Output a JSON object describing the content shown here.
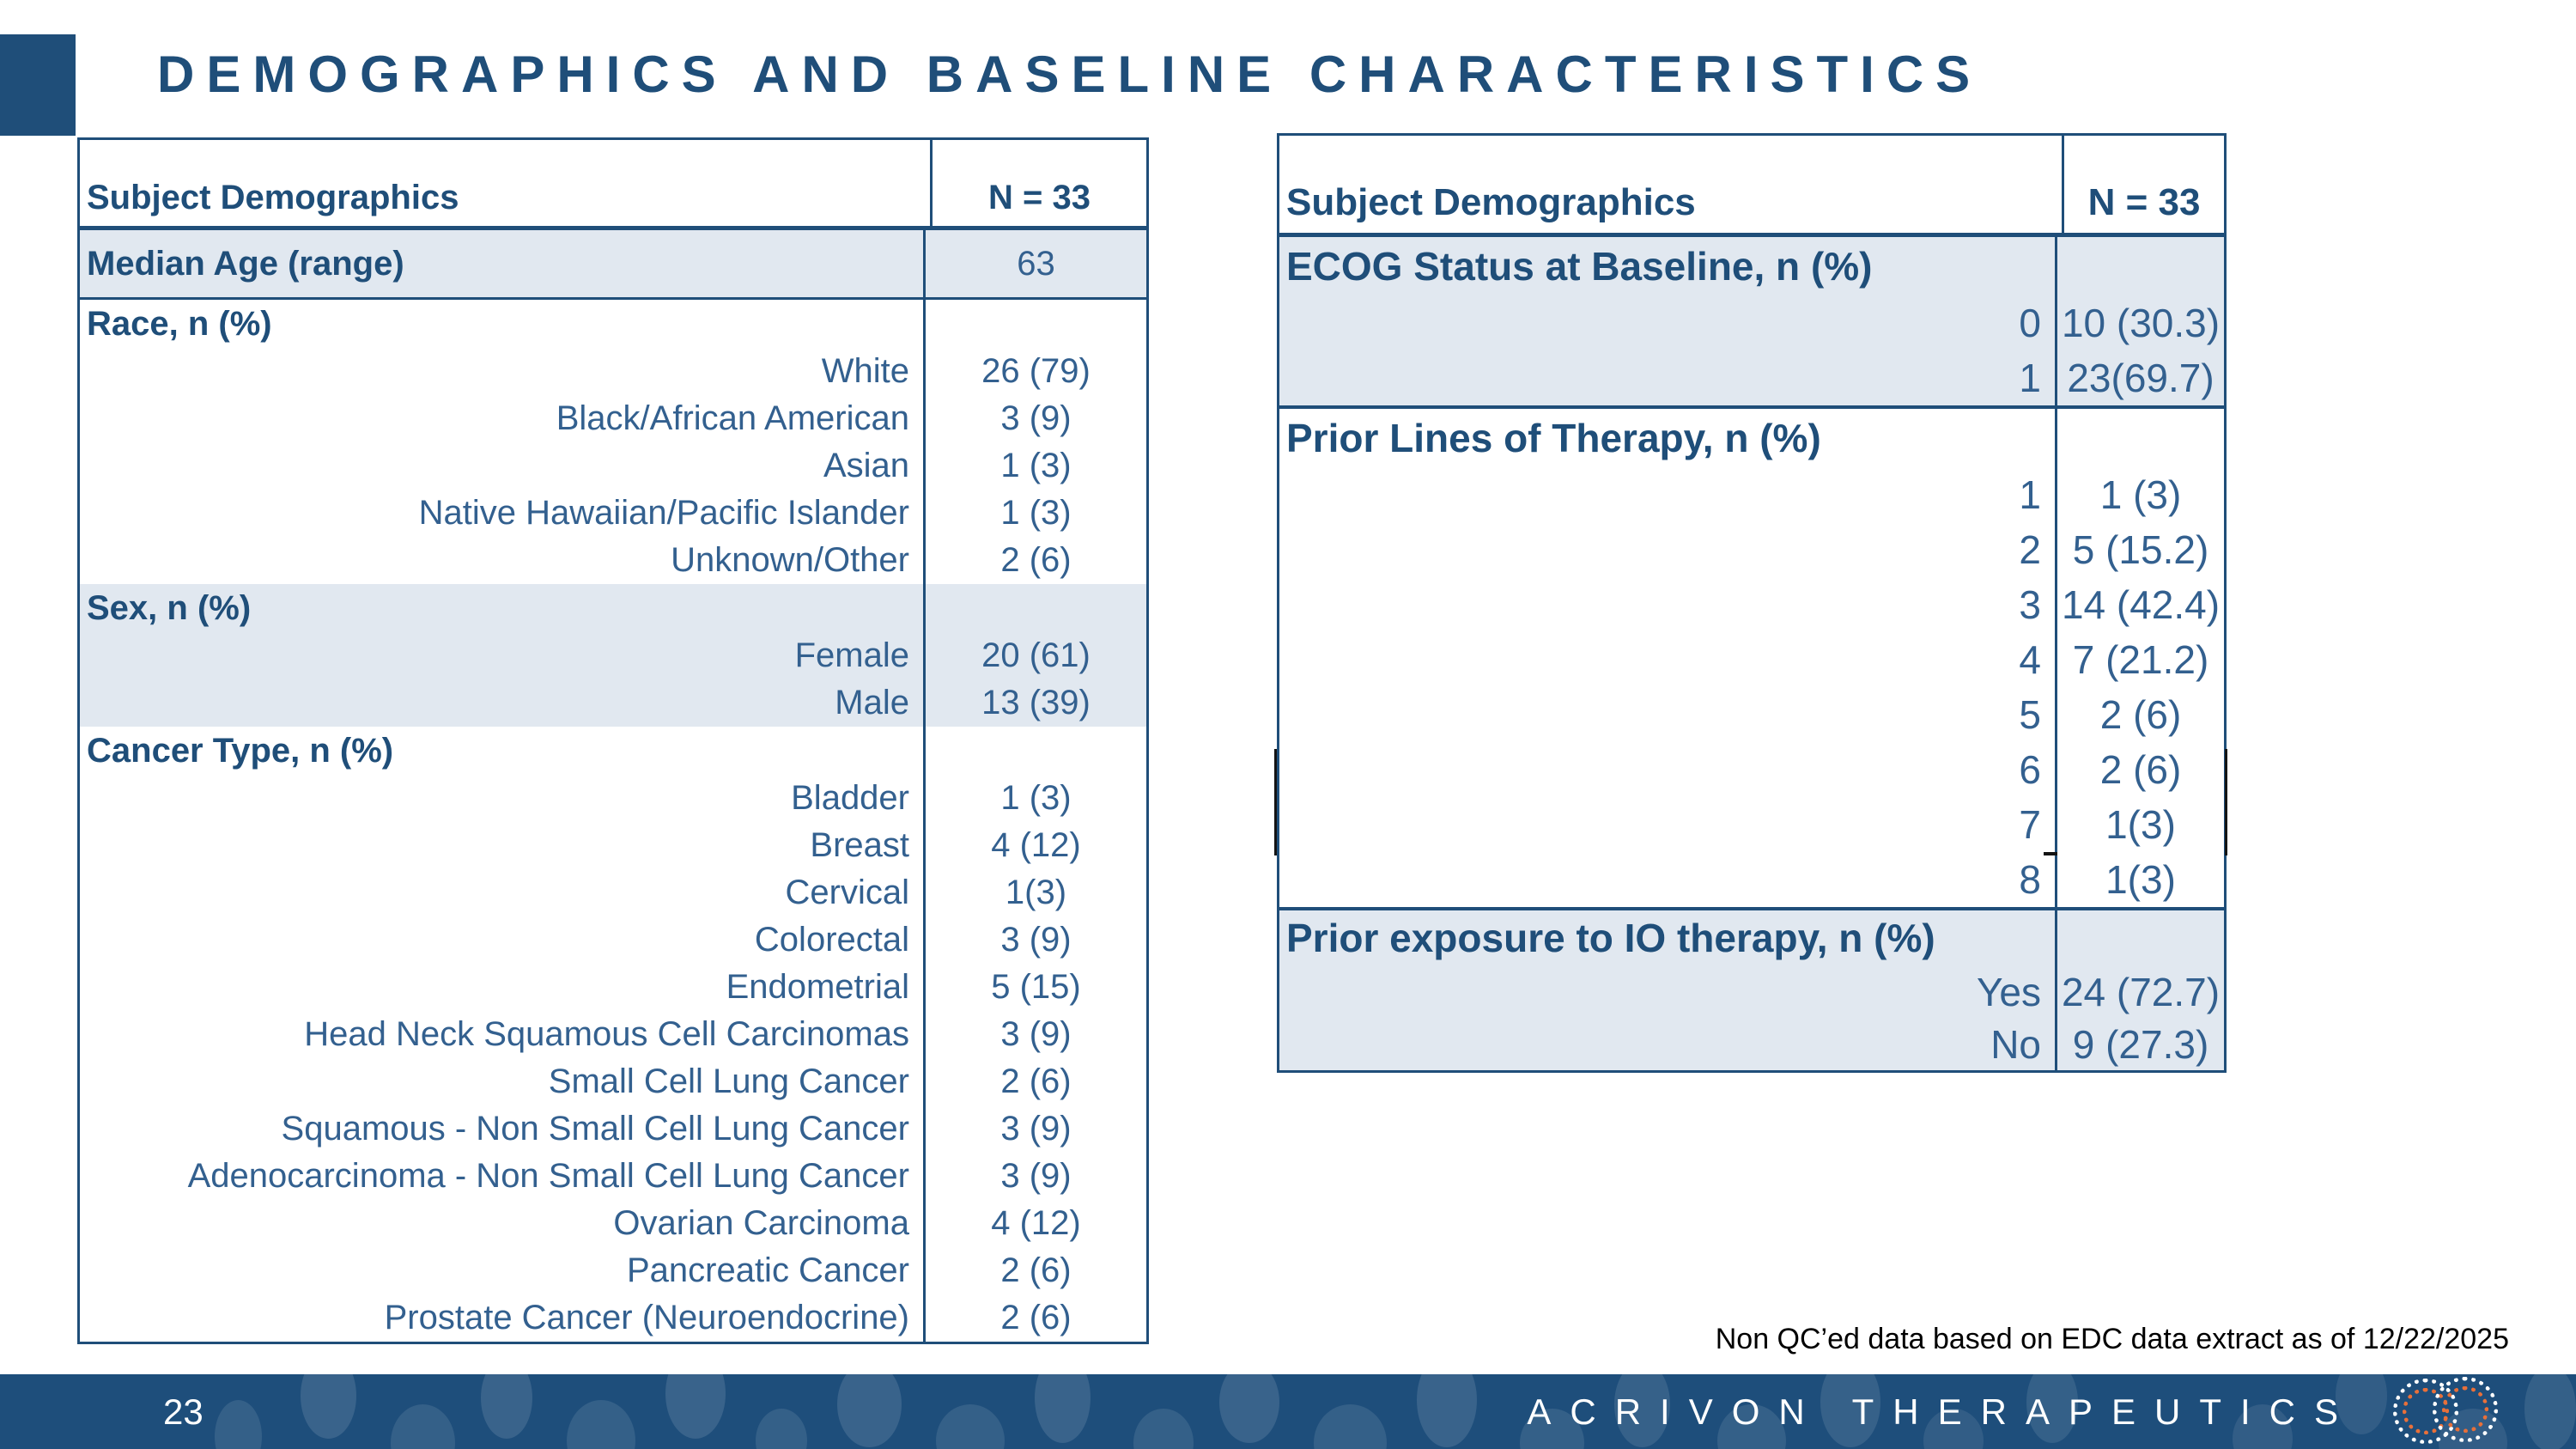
{
  "slide": {
    "title": "DEMOGRAPHICS AND BASELINE CHARACTERISTICS",
    "page_number": "23",
    "footnote": "Non QC’ed data based on EDC data extract as of 12/22/2025",
    "footer_brand": "ACRIVON THERAPEUTICS",
    "icons": {
      "logo": "interlocking-dotted-rings"
    },
    "colors": {
      "accent_blue": "#1F4E79",
      "value_blue": "#33608F",
      "row_shade": "#E1E8F0",
      "footer_bar": "#1E4E7B",
      "logo_orange": "#E8703A",
      "footnote_black": "#000000"
    }
  },
  "left_table": {
    "header": {
      "label": "Subject Demographics",
      "value": "N = 33"
    },
    "sections": [
      {
        "type": "single",
        "shaded": true,
        "label": "Median Age (range)",
        "value": "63"
      },
      {
        "type": "group",
        "shaded": false,
        "label": "Race, n (%)",
        "rows": [
          {
            "label": "White",
            "value": "26 (79)"
          },
          {
            "label": "Black/African American",
            "value": "3 (9)"
          },
          {
            "label": "Asian",
            "value": "1 (3)"
          },
          {
            "label": "Native Hawaiian/Pacific Islander",
            "value": "1 (3)"
          },
          {
            "label": "Unknown/Other",
            "value": "2 (6)"
          }
        ]
      },
      {
        "type": "group",
        "shaded": true,
        "label": "Sex, n (%)",
        "rows": [
          {
            "label": "Female",
            "value": "20 (61)"
          },
          {
            "label": "Male",
            "value": "13 (39)"
          }
        ]
      },
      {
        "type": "group",
        "shaded": false,
        "label": "Cancer Type, n (%)",
        "rows": [
          {
            "label": "Bladder",
            "value": "1 (3)"
          },
          {
            "label": "Breast",
            "value": "4 (12)"
          },
          {
            "label": "Cervical",
            "value": "1(3)"
          },
          {
            "label": "Colorectal",
            "value": "3 (9)"
          },
          {
            "label": "Endometrial",
            "value": "5 (15)"
          },
          {
            "label": "Head Neck Squamous Cell Carcinomas",
            "value": "3 (9)"
          },
          {
            "label": "Small Cell Lung Cancer",
            "value": "2 (6)"
          },
          {
            "label": "Squamous - Non Small Cell Lung Cancer",
            "value": "3 (9)"
          },
          {
            "label": "Adenocarcinoma - Non Small Cell Lung Cancer",
            "value": "3 (9)"
          },
          {
            "label": "Ovarian Carcinoma",
            "value": "4 (12)"
          },
          {
            "label": "Pancreatic Cancer",
            "value": "2 (6)"
          },
          {
            "label": "Prostate Cancer (Neuroendocrine)",
            "value": "2 (6)"
          }
        ]
      }
    ]
  },
  "right_table": {
    "header": {
      "label": "Subject Demographics",
      "value": "N = 33"
    },
    "sections": [
      {
        "type": "group",
        "shaded": true,
        "label": "ECOG Status at Baseline, n (%)",
        "rows": [
          {
            "label": "0",
            "value": "10 (30.3)"
          },
          {
            "label": "1",
            "value": "23(69.7)"
          }
        ]
      },
      {
        "type": "group",
        "shaded": false,
        "label": "Prior Lines of Therapy, n (%)",
        "rows": [
          {
            "label": "1",
            "value": "1 (3)"
          },
          {
            "label": "2",
            "value": "5 (15.2)"
          },
          {
            "label": "3",
            "value": "14 (42.4)"
          },
          {
            "label": "4",
            "value": "7 (21.2)"
          },
          {
            "label": "5",
            "value": "2 (6)"
          },
          {
            "label": "6",
            "value": "2 (6)"
          },
          {
            "label": "7",
            "value": "1(3)"
          },
          {
            "label": "8",
            "value": "1(3)"
          }
        ]
      },
      {
        "type": "group",
        "shaded": true,
        "label": "Prior exposure to IO therapy, n (%)",
        "rows": [
          {
            "label": "Yes",
            "value": "24 (72.7)"
          },
          {
            "label": "No",
            "value": "9 (27.3)"
          }
        ]
      }
    ]
  }
}
